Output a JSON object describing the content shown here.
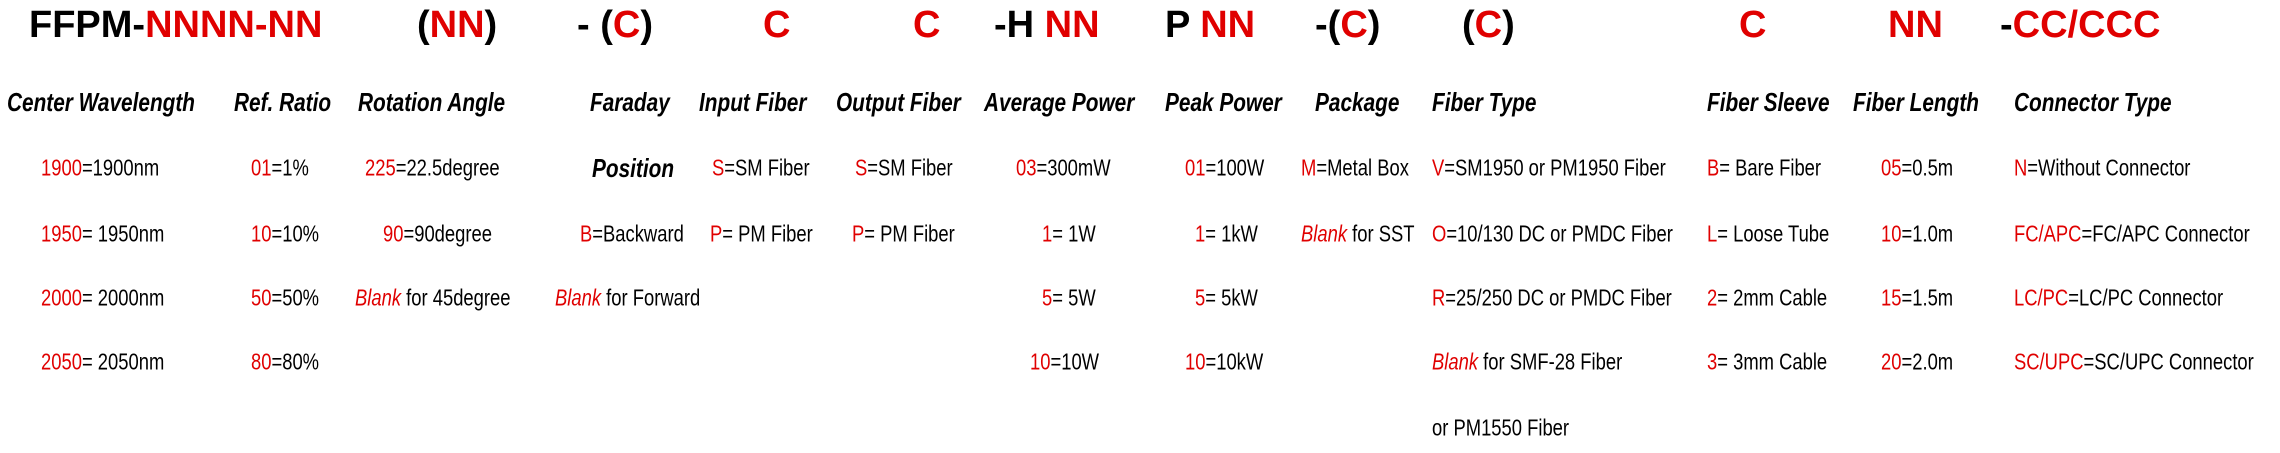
{
  "header": {
    "groups": [
      [
        {
          "text": "FFPM-",
          "color": "#000000"
        },
        {
          "text": "NNNN-NN",
          "color": "#e00000"
        }
      ],
      [
        {
          "text": "(",
          "color": "#000000"
        },
        {
          "text": "NN",
          "color": "#e00000"
        },
        {
          "text": ")",
          "color": "#000000"
        }
      ],
      [
        {
          "text": "- (",
          "color": "#000000"
        },
        {
          "text": "C",
          "color": "#e00000"
        },
        {
          "text": ")",
          "color": "#000000"
        }
      ],
      [
        {
          "text": "C",
          "color": "#e00000"
        }
      ],
      [
        {
          "text": "C",
          "color": "#e00000"
        }
      ],
      [
        {
          "text": "-H ",
          "color": "#000000"
        },
        {
          "text": "NN",
          "color": "#e00000"
        }
      ],
      [
        {
          "text": "P ",
          "color": "#000000"
        },
        {
          "text": "NN",
          "color": "#e00000"
        }
      ],
      [
        {
          "text": "-(",
          "color": "#000000"
        },
        {
          "text": "C",
          "color": "#e00000"
        },
        {
          "text": ")",
          "color": "#000000"
        }
      ],
      [
        {
          "text": "(",
          "color": "#000000"
        },
        {
          "text": "C",
          "color": "#e00000"
        },
        {
          "text": ")",
          "color": "#000000"
        }
      ],
      [
        {
          "text": "C",
          "color": "#e00000"
        }
      ],
      [
        {
          "text": "NN",
          "color": "#e00000"
        }
      ],
      [
        {
          "text": "-",
          "color": "#000000"
        },
        {
          "text": "CC/CCC",
          "color": "#e00000"
        }
      ]
    ]
  },
  "columns": [
    {
      "title": "Center Wavelength",
      "entries": [
        {
          "code": "1900",
          "text": "=1900nm"
        },
        {
          "code": "1950",
          "text": "= 1950nm"
        },
        {
          "code": "2000",
          "text": "= 2000nm"
        },
        {
          "code": "2050",
          "text": "= 2050nm"
        }
      ]
    },
    {
      "title": "Ref. Ratio",
      "entries": [
        {
          "code": "01",
          "text": "=1%"
        },
        {
          "code": "10",
          "text": "=10%"
        },
        {
          "code": "50",
          "text": "=50%"
        },
        {
          "code": "80",
          "text": "=80%"
        }
      ]
    },
    {
      "title": "Rotation Angle",
      "entries": [
        {
          "code": "225",
          "text": "=22.5degree"
        },
        {
          "code": "90",
          "text": "=90degree"
        },
        {
          "code": "Blank",
          "text": " for 45degree",
          "italic": true
        }
      ]
    },
    {
      "title": "Faraday",
      "subtitle": "Position",
      "entries": [
        {
          "code": "B",
          "text": "=Backward"
        },
        {
          "code": "Blank",
          "text": " for Forward",
          "italic": true
        }
      ]
    },
    {
      "title": "Input Fiber",
      "entries": [
        {
          "code": "S",
          "text": "=SM Fiber"
        },
        {
          "code": "P",
          "text": "= PM Fiber"
        }
      ]
    },
    {
      "title": "Output Fiber",
      "entries": [
        {
          "code": "S",
          "text": "=SM Fiber"
        },
        {
          "code": "P",
          "text": "= PM Fiber"
        }
      ]
    },
    {
      "title": "Average Power",
      "entries": [
        {
          "code": "03",
          "text": "=300mW"
        },
        {
          "code": "1",
          "text": "= 1W"
        },
        {
          "code": "5",
          "text": "= 5W"
        },
        {
          "code": "10",
          "text": "=10W"
        }
      ]
    },
    {
      "title": "Peak Power",
      "entries": [
        {
          "code": "01",
          "text": "=100W"
        },
        {
          "code": "1",
          "text": "= 1kW"
        },
        {
          "code": "5",
          "text": "= 5kW"
        },
        {
          "code": "10",
          "text": "=10kW"
        }
      ]
    },
    {
      "title": "Package",
      "entries": [
        {
          "code": "M",
          "text": "=Metal Box"
        },
        {
          "code": "Blank",
          "text": " for SST",
          "italic": true
        }
      ]
    },
    {
      "title": "Fiber Type",
      "entries": [
        {
          "code": "V",
          "text": "=SM1950 or PM1950 Fiber"
        },
        {
          "code": "O",
          "text": "=10/130 DC or PMDC Fiber"
        },
        {
          "code": "R",
          "text": "=25/250 DC or PMDC Fiber"
        },
        {
          "code": "Blank",
          "text": " for SMF-28 Fiber",
          "italic": true
        },
        {
          "text": "or PM1550 Fiber"
        }
      ]
    },
    {
      "title": "Fiber Sleeve",
      "entries": [
        {
          "code": "B",
          "text": "= Bare Fiber"
        },
        {
          "code": "L",
          "text": "= Loose Tube"
        },
        {
          "code": "2",
          "text": "= 2mm Cable"
        },
        {
          "code": "3",
          "text": "= 3mm Cable"
        }
      ]
    },
    {
      "title": "Fiber Length",
      "entries": [
        {
          "code": "05",
          "text": "=0.5m"
        },
        {
          "code": "10",
          "text": "=1.0m"
        },
        {
          "code": "15",
          "text": "=1.5m"
        },
        {
          "code": "20",
          "text": "=2.0m"
        }
      ]
    },
    {
      "title": "Connector Type",
      "entries": [
        {
          "code": "N",
          "text": "=Without Connector"
        },
        {
          "code": "FC/APC",
          "text": "=FC/APC Connector"
        },
        {
          "code": "LC/PC",
          "text": "=LC/PC Connector"
        },
        {
          "code": "SC/UPC",
          "text": "=SC/UPC Connector"
        }
      ]
    }
  ],
  "code_color": "#e00000"
}
